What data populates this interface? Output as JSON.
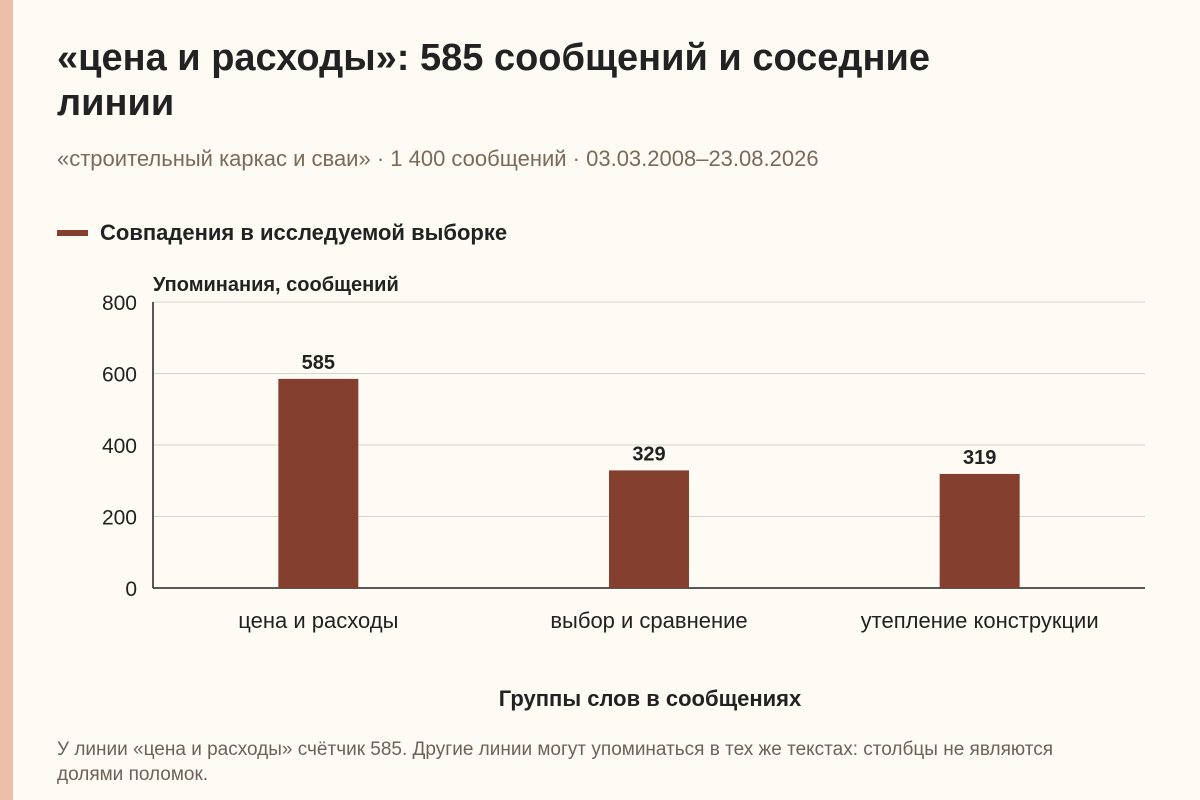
{
  "title": "«цена и расходы»: 585 сообщений и соседние линии",
  "subtitle": "«строительный каркас и сваи» · 1 400 сообщений · 03.03.2008–23.08.2026",
  "footnote": "У линии «цена и расходы» счётчик 585. Другие линии могут упоминаться в тех же текстах: столбцы не являются долями поломок.",
  "colors": {
    "bar": "#853f2f",
    "grid": "#d8d4cc",
    "axis": "#222222",
    "accent_strip": "#eebfa8"
  },
  "chart_data": {
    "type": "bar",
    "title": "«цена и расходы»: 585 сообщений и соседние линии",
    "xlabel": "Группы слов в сообщениях",
    "ylabel": "Упоминания, сообщений",
    "categories": [
      "цена и расходы",
      "выбор и сравнение",
      "утепление конструкции"
    ],
    "series": [
      {
        "name": "Совпадения в исследуемой выборке",
        "values": [
          585,
          329,
          319
        ]
      }
    ],
    "ylim": [
      0,
      800
    ],
    "yticks": [
      0,
      200,
      400,
      600,
      800
    ],
    "grid": true,
    "legend_position": "top-left"
  }
}
